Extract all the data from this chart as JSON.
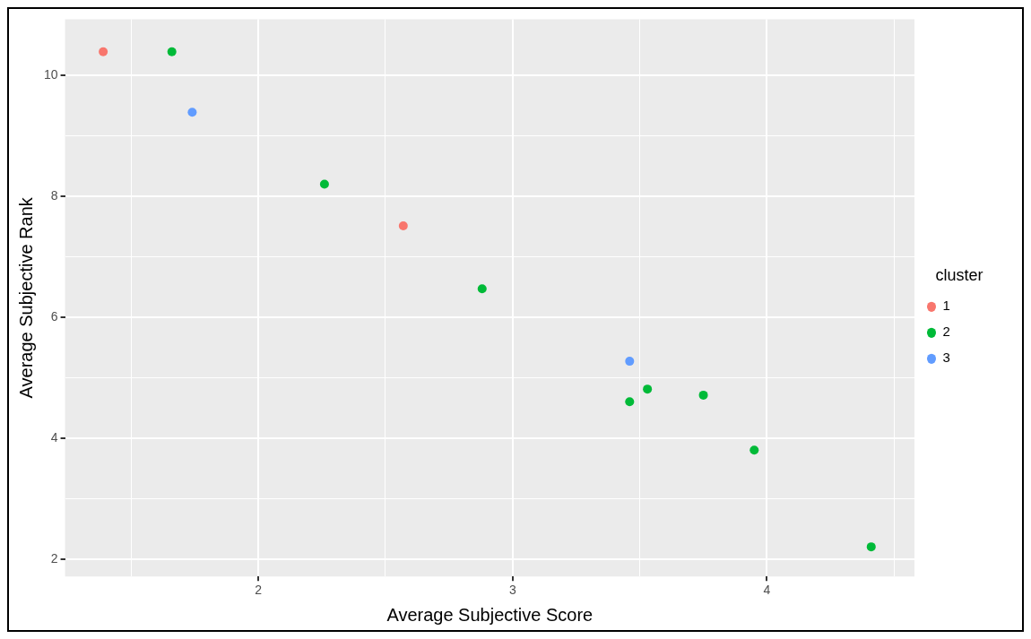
{
  "chart_data": {
    "type": "scatter",
    "xlabel": "Average Subjective Score",
    "ylabel": "Average Subjective Rank",
    "legend_title": "cluster",
    "legend": "right",
    "grid": true,
    "marker": "circle",
    "xlim": [
      1.24,
      4.58
    ],
    "ylim": [
      1.71,
      10.93
    ],
    "xticks": [
      {
        "value": 1.5,
        "label": null
      },
      2,
      {
        "value": 2.5,
        "label": null
      },
      3,
      {
        "value": 3.5,
        "label": null
      },
      4,
      {
        "value": 4.5,
        "label": null
      }
    ],
    "yticks": [
      2,
      {
        "value": 3,
        "label": null
      },
      4,
      {
        "value": 5,
        "label": null
      },
      6,
      {
        "value": 7,
        "label": null
      },
      8,
      {
        "value": 9,
        "label": null
      },
      10
    ],
    "series": [
      {
        "name": "1",
        "color": "#f8766d",
        "x": [
          1.39,
          2.57
        ],
        "values": [
          10.39,
          7.51
        ]
      },
      {
        "name": "2",
        "color": "#00ba38",
        "x": [
          1.66,
          2.26,
          2.88,
          3.46,
          3.53,
          3.75,
          3.95,
          4.41
        ],
        "values": [
          10.39,
          8.2,
          6.47,
          4.6,
          4.81,
          4.71,
          3.8,
          2.2
        ]
      },
      {
        "name": "3",
        "color": "#619cff",
        "x": [
          1.74,
          3.46
        ],
        "values": [
          9.39,
          5.27
        ]
      }
    ]
  }
}
